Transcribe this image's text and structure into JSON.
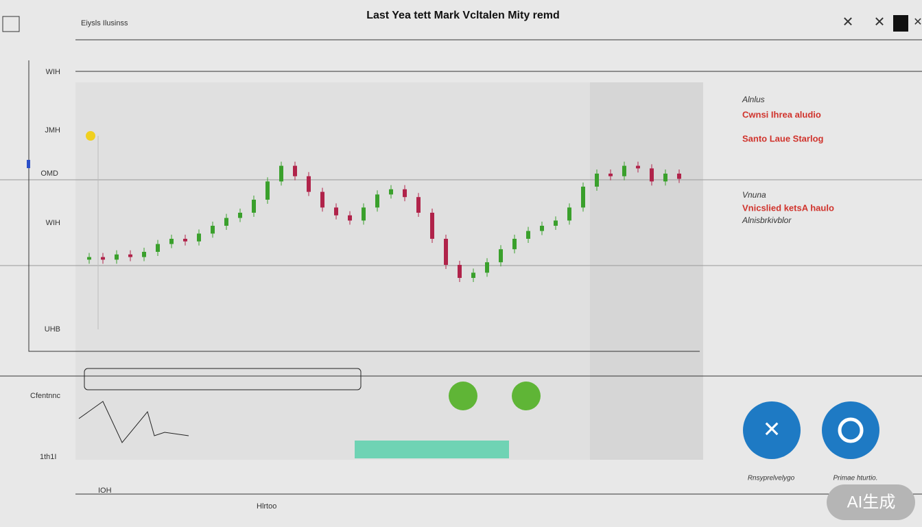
{
  "header": {
    "app": "Eiysls Ilusinss",
    "title": "Last Yea tett Mark Vcltalen Mity remd"
  },
  "axis_labels": [
    "WIH",
    "JMH",
    "OMD",
    "WIH",
    "UHB"
  ],
  "legend": {
    "heading1": "Alnlus",
    "item1": "Cwnsi Ihrea aludio",
    "item2": "Santo Laue Starlog",
    "heading2": "Vnuna",
    "item3": "Vnicslied ketsA haulo",
    "item4": "Alnisbrkivblor"
  },
  "bottom": {
    "label1": "Cfentnnc",
    "label2": "1th1I",
    "label3": "IOH",
    "label4": "Hlrtoo",
    "button1": "Rnsyprelvelygo",
    "button2": "Primae hturtio.",
    "watermark": "AI生成"
  },
  "chart_data": {
    "type": "candlestick",
    "ylim": [
      0,
      100
    ],
    "open": [
      32,
      33,
      32,
      34,
      33,
      35,
      38,
      40,
      39,
      42,
      45,
      48,
      50,
      55,
      62,
      68,
      64,
      58,
      52,
      49,
      47,
      52,
      57,
      59,
      56,
      50,
      40,
      30,
      25,
      27,
      31,
      36,
      40,
      43,
      45,
      47,
      52,
      60,
      65,
      64,
      68,
      67,
      62,
      65
    ],
    "close": [
      33,
      32,
      34,
      33,
      35,
      38,
      40,
      39,
      42,
      45,
      48,
      50,
      55,
      62,
      68,
      64,
      58,
      52,
      49,
      47,
      52,
      57,
      59,
      56,
      50,
      40,
      30,
      25,
      27,
      31,
      36,
      40,
      43,
      45,
      47,
      52,
      60,
      65,
      64,
      68,
      67,
      62,
      65,
      63
    ],
    "up_color": "#3aa02c",
    "down_color": "#b0234a"
  }
}
